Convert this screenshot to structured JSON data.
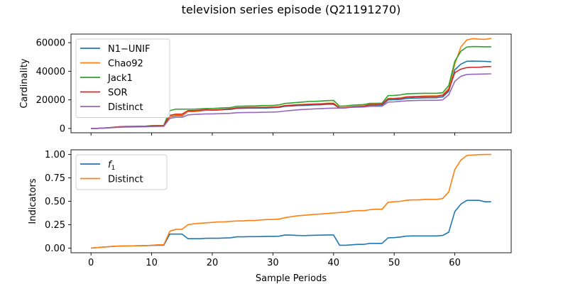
{
  "figure": {
    "title": "television series episode (Q21191270)",
    "xlabel": "Sample Periods"
  },
  "chart_data": [
    {
      "type": "line",
      "ylabel": "Cardinality",
      "xlim": [
        -3.3,
        69.3
      ],
      "ylim": [
        -3000,
        66000
      ],
      "xticks": [
        0,
        10,
        20,
        30,
        40,
        50,
        60
      ],
      "yticks": [
        0,
        20000,
        40000,
        60000
      ],
      "ytick_labels": [
        "0",
        "20000",
        "40000",
        "60000"
      ],
      "show_xtick_labels": false,
      "legend_position": "upper-left",
      "x": [
        0,
        1,
        2,
        3,
        4,
        5,
        6,
        7,
        8,
        9,
        10,
        11,
        12,
        13,
        14,
        15,
        16,
        17,
        18,
        19,
        20,
        21,
        22,
        23,
        24,
        25,
        26,
        27,
        28,
        29,
        30,
        31,
        32,
        33,
        34,
        35,
        36,
        37,
        38,
        39,
        40,
        41,
        42,
        43,
        44,
        45,
        46,
        47,
        48,
        49,
        50,
        51,
        52,
        53,
        54,
        55,
        56,
        57,
        58,
        59,
        60,
        61,
        62,
        63,
        64,
        65,
        66
      ],
      "series": [
        {
          "name": "N1−UNIF",
          "color": "#1f77b4",
          "values": [
            0,
            50,
            250,
            500,
            900,
            1200,
            1300,
            1350,
            1400,
            1500,
            1800,
            1850,
            1900,
            8000,
            8800,
            8800,
            11800,
            11800,
            12200,
            12800,
            12700,
            12800,
            13200,
            13300,
            14000,
            14100,
            14200,
            14200,
            14300,
            14300,
            14500,
            14700,
            15500,
            15700,
            16000,
            16100,
            16300,
            16500,
            16600,
            17000,
            16900,
            14200,
            14400,
            15000,
            15100,
            15200,
            16300,
            16300,
            16400,
            20000,
            20100,
            20300,
            21000,
            21200,
            21300,
            21400,
            21500,
            21500,
            22000,
            26000,
            41000,
            45000,
            47000,
            47100,
            47000,
            46900,
            46600
          ]
        },
        {
          "name": "Chao92",
          "color": "#ff7f0e",
          "values": [
            0,
            50,
            250,
            500,
            900,
            1200,
            1300,
            1350,
            1400,
            1500,
            1800,
            1850,
            1900,
            8200,
            9200,
            9200,
            12000,
            12000,
            12500,
            13000,
            12900,
            13000,
            13500,
            13600,
            14500,
            14600,
            14700,
            14700,
            14800,
            14800,
            15000,
            15200,
            16000,
            16300,
            16600,
            16800,
            17000,
            17200,
            17300,
            17700,
            17700,
            14500,
            14800,
            15400,
            15600,
            15800,
            17000,
            17000,
            17200,
            21000,
            21100,
            21400,
            22200,
            22400,
            22500,
            22700,
            22800,
            22800,
            23500,
            28000,
            45000,
            57000,
            62000,
            62800,
            62500,
            62300,
            63000
          ]
        },
        {
          "name": "Jack1",
          "color": "#2ca02c",
          "values": [
            0,
            60,
            300,
            600,
            1000,
            1350,
            1450,
            1500,
            1550,
            1650,
            2000,
            2050,
            2100,
            12500,
            13500,
            13500,
            13500,
            13500,
            13700,
            14000,
            14000,
            14200,
            14500,
            14600,
            15500,
            15600,
            15700,
            15700,
            16000,
            16000,
            16100,
            16500,
            17500,
            17800,
            18200,
            18500,
            18900,
            19000,
            19200,
            19500,
            19600,
            15500,
            15800,
            16300,
            16500,
            16700,
            17600,
            17600,
            17700,
            23000,
            23100,
            23500,
            24200,
            24400,
            24500,
            24600,
            24600,
            24600,
            25000,
            30000,
            47000,
            54000,
            57000,
            57300,
            57200,
            57100,
            57100
          ]
        },
        {
          "name": "SOR",
          "color": "#d62728",
          "values": [
            0,
            50,
            250,
            500,
            900,
            1200,
            1300,
            1350,
            1400,
            1500,
            1800,
            1850,
            1900,
            9200,
            10000,
            10000,
            12500,
            12500,
            12800,
            13200,
            13000,
            13200,
            13500,
            13700,
            14400,
            14500,
            14600,
            14600,
            14700,
            14700,
            14900,
            15100,
            15900,
            16200,
            16500,
            16600,
            16800,
            17000,
            17100,
            17400,
            17400,
            14300,
            14600,
            15100,
            15300,
            15500,
            16600,
            16600,
            16800,
            20700,
            20800,
            21100,
            21800,
            22000,
            22200,
            22300,
            22400,
            22400,
            23000,
            27000,
            39000,
            41500,
            42600,
            42800,
            42800,
            43200,
            43300
          ]
        },
        {
          "name": "Distinct",
          "color": "#9467bd",
          "values": [
            0,
            40,
            200,
            400,
            700,
            900,
            1000,
            1050,
            1100,
            1200,
            1400,
            1450,
            1500,
            7000,
            7800,
            7800,
            9500,
            9800,
            10000,
            10200,
            10200,
            10400,
            10500,
            10600,
            11000,
            11100,
            11200,
            11200,
            11300,
            11400,
            11500,
            11700,
            12200,
            12600,
            13000,
            13300,
            13500,
            13700,
            13900,
            14100,
            14200,
            14300,
            14400,
            14800,
            14900,
            15000,
            15500,
            15500,
            15600,
            18500,
            18600,
            19000,
            19300,
            19500,
            19600,
            19700,
            19700,
            19700,
            20000,
            23500,
            33000,
            36500,
            37800,
            37900,
            38000,
            38100,
            38200
          ]
        }
      ]
    },
    {
      "type": "line",
      "ylabel": "Indicators",
      "xlim": [
        -3.3,
        69.3
      ],
      "ylim": [
        -0.05,
        1.05
      ],
      "xticks": [
        0,
        10,
        20,
        30,
        40,
        50,
        60
      ],
      "xtick_labels": [
        "0",
        "10",
        "20",
        "30",
        "40",
        "50",
        "60"
      ],
      "yticks": [
        0,
        0.25,
        0.5,
        0.75,
        1.0
      ],
      "ytick_labels": [
        "0.00",
        "0.25",
        "0.50",
        "0.75",
        "1.00"
      ],
      "show_xtick_labels": true,
      "legend_position": "upper-left",
      "x": [
        0,
        1,
        2,
        3,
        4,
        5,
        6,
        7,
        8,
        9,
        10,
        11,
        12,
        13,
        14,
        15,
        16,
        17,
        18,
        19,
        20,
        21,
        22,
        23,
        24,
        25,
        26,
        27,
        28,
        29,
        30,
        31,
        32,
        33,
        34,
        35,
        36,
        37,
        38,
        39,
        40,
        41,
        42,
        43,
        44,
        45,
        46,
        47,
        48,
        49,
        50,
        51,
        52,
        53,
        54,
        55,
        56,
        57,
        58,
        59,
        60,
        61,
        62,
        63,
        64,
        65,
        66
      ],
      "series": [
        {
          "name": "f",
          "name_subscript": "1",
          "color": "#1f77b4",
          "values": [
            0.0,
            0.005,
            0.01,
            0.015,
            0.02,
            0.022,
            0.023,
            0.024,
            0.025,
            0.026,
            0.028,
            0.03,
            0.03,
            0.15,
            0.15,
            0.15,
            0.1,
            0.1,
            0.1,
            0.105,
            0.105,
            0.105,
            0.108,
            0.11,
            0.12,
            0.12,
            0.122,
            0.122,
            0.123,
            0.125,
            0.125,
            0.127,
            0.14,
            0.138,
            0.135,
            0.133,
            0.135,
            0.137,
            0.138,
            0.14,
            0.14,
            0.03,
            0.03,
            0.035,
            0.04,
            0.04,
            0.05,
            0.05,
            0.05,
            0.11,
            0.112,
            0.118,
            0.128,
            0.13,
            0.13,
            0.13,
            0.13,
            0.13,
            0.135,
            0.17,
            0.39,
            0.47,
            0.51,
            0.51,
            0.51,
            0.495,
            0.495
          ]
        },
        {
          "name": "Distinct",
          "color": "#ff7f0e",
          "values": [
            0.0,
            0.005,
            0.01,
            0.015,
            0.02,
            0.022,
            0.023,
            0.024,
            0.025,
            0.026,
            0.03,
            0.035,
            0.035,
            0.18,
            0.2,
            0.2,
            0.25,
            0.26,
            0.265,
            0.27,
            0.275,
            0.28,
            0.28,
            0.285,
            0.29,
            0.29,
            0.295,
            0.295,
            0.3,
            0.305,
            0.305,
            0.31,
            0.325,
            0.335,
            0.345,
            0.35,
            0.355,
            0.36,
            0.365,
            0.37,
            0.375,
            0.38,
            0.385,
            0.395,
            0.4,
            0.4,
            0.41,
            0.415,
            0.415,
            0.49,
            0.495,
            0.5,
            0.51,
            0.515,
            0.515,
            0.52,
            0.52,
            0.52,
            0.53,
            0.6,
            0.84,
            0.94,
            0.99,
            0.995,
            0.998,
            1.0,
            1.0
          ]
        }
      ]
    }
  ]
}
